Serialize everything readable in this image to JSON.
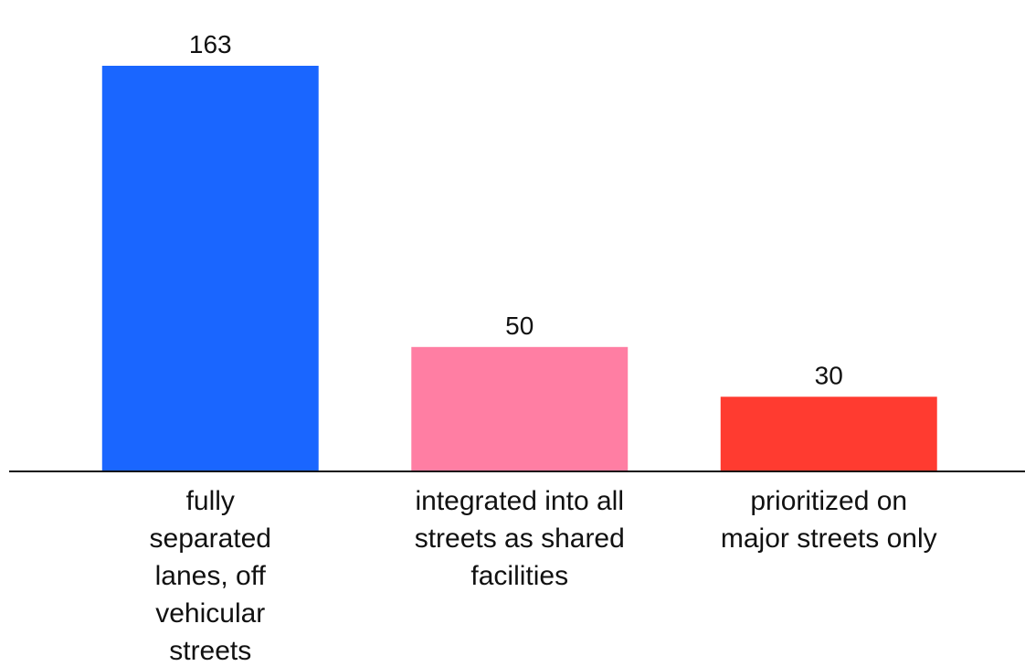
{
  "chart_data": {
    "type": "bar",
    "categories": [
      "fully separated lanes, off vehicular streets",
      "integrated into all streets as shared facilities",
      "prioritized on major streets only"
    ],
    "values": [
      163,
      50,
      30
    ],
    "colors": [
      "#1a66ff",
      "#ff7ea3",
      "#ff3b30"
    ]
  }
}
